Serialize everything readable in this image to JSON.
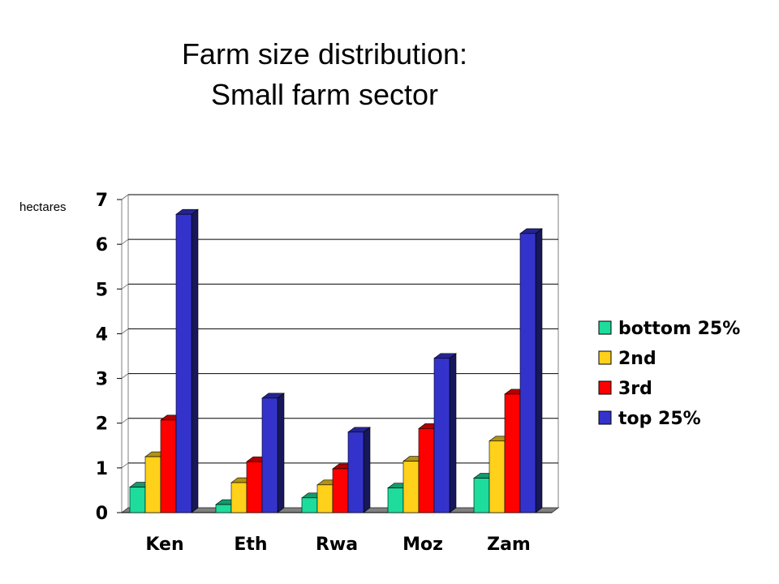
{
  "chart_data": {
    "type": "bar",
    "title_line1": "Farm size distribution:",
    "title_line2": "Small farm sector",
    "ylabel": "hectares",
    "xlabel": "",
    "ylim": [
      0,
      7
    ],
    "yticks": [
      "0",
      "1",
      "2",
      "3",
      "4",
      "5",
      "6",
      "7"
    ],
    "grid": true,
    "legend_position": "right",
    "categories": [
      "Ken",
      "Eth",
      "Rwa",
      "Moz",
      "Zam"
    ],
    "series": [
      {
        "name": "bottom 25%",
        "color": "#1ddc9c",
        "values": [
          0.57,
          0.18,
          0.33,
          0.55,
          0.77
        ]
      },
      {
        "name": "2nd",
        "color": "#ffd11a",
        "values": [
          1.25,
          0.67,
          0.62,
          1.15,
          1.6
        ]
      },
      {
        "name": "3rd",
        "color": "#ff0000",
        "values": [
          2.07,
          1.14,
          0.98,
          1.88,
          2.65
        ]
      },
      {
        "name": "top 25%",
        "color": "#3333cc",
        "values": [
          6.67,
          2.56,
          1.8,
          3.45,
          6.24
        ]
      }
    ]
  }
}
